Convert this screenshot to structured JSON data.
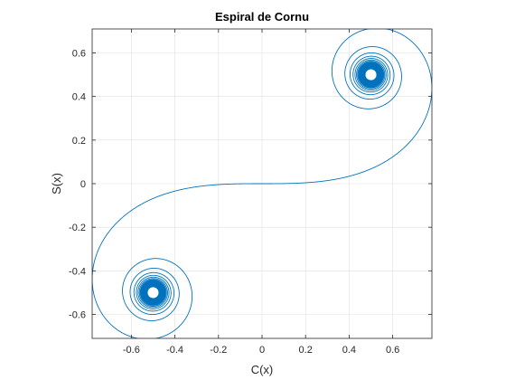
{
  "chart_data": {
    "type": "line",
    "title": "Espiral de Cornu",
    "xlabel": "C(x)",
    "ylabel": "S(x)",
    "xlim": [
      -0.78,
      0.78
    ],
    "ylim": [
      -0.71,
      0.71
    ],
    "x_ticks": [
      -0.6,
      -0.4,
      -0.2,
      0,
      0.2,
      0.4,
      0.6
    ],
    "x_tick_labels": [
      "-0.6",
      "-0.4",
      "-0.2",
      "0",
      "0.2",
      "0.4",
      "0.6"
    ],
    "y_ticks": [
      -0.6,
      -0.4,
      -0.2,
      0,
      0.2,
      0.4,
      0.6
    ],
    "y_tick_labels": [
      "-0.6",
      "-0.4",
      "-0.2",
      "0",
      "0.2",
      "0.4",
      "0.6"
    ],
    "grid": true,
    "series": [
      {
        "curve": "Fresnel integrals C(t), S(t)",
        "t_range": [
          -12,
          12
        ],
        "limit_points": [
          [
            0.5,
            0.5
          ],
          [
            -0.5,
            -0.5
          ]
        ],
        "color": "#0072bd"
      }
    ]
  }
}
